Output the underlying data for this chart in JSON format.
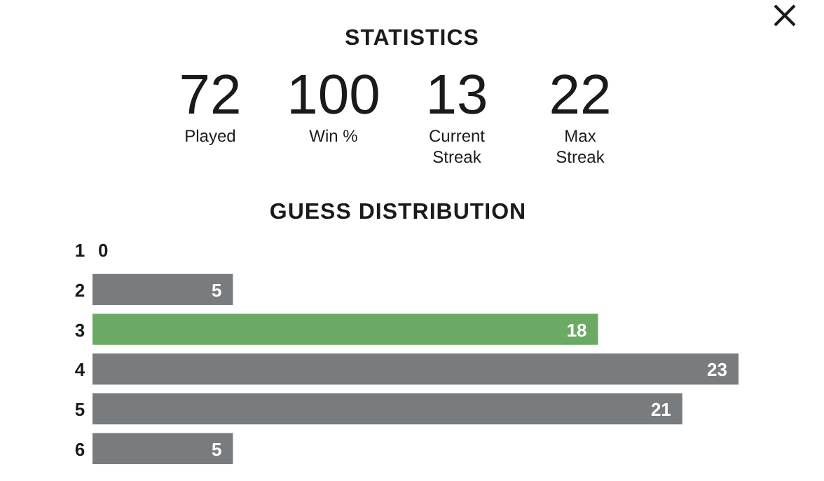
{
  "chart_data": [
    {
      "type": "other",
      "title": "STATISTICS",
      "categories": [
        "Played",
        "Win %",
        "Current Streak",
        "Max Streak"
      ],
      "values": [
        72,
        100,
        13,
        22
      ],
      "data_labels": true
    },
    {
      "type": "bar",
      "orientation": "horizontal",
      "title": "GUESS DISTRIBUTION",
      "categories": [
        "1",
        "2",
        "3",
        "4",
        "5",
        "6"
      ],
      "values": [
        0,
        5,
        18,
        23,
        21,
        5
      ],
      "colors": [
        "#787c7e",
        "#787c7e",
        "#6aaa64",
        "#787c7e",
        "#787c7e",
        "#787c7e"
      ],
      "data_labels": true
    }
  ]
}
